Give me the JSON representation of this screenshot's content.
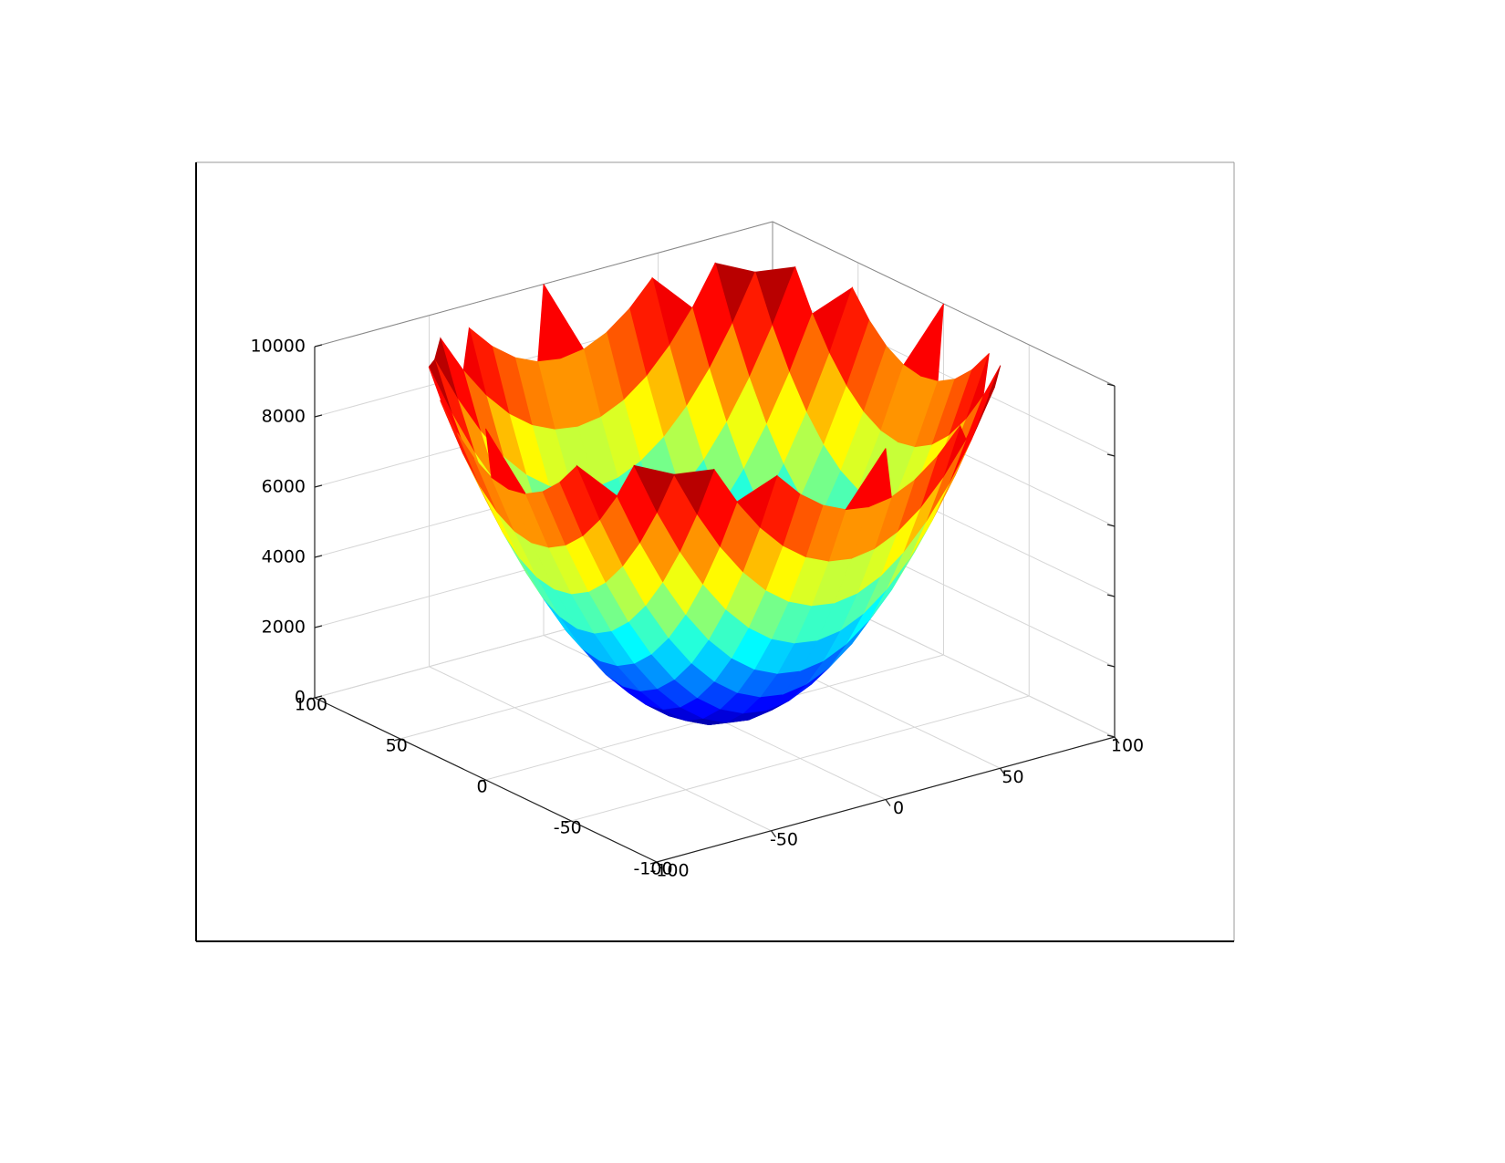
{
  "chart_data": {
    "type": "surface3d",
    "x": [
      -100,
      -90,
      -80,
      -70,
      -60,
      -50,
      -40,
      -30,
      -20,
      -10,
      0,
      10,
      20,
      30,
      40,
      50,
      60,
      70,
      80,
      90,
      100
    ],
    "y": [
      -100,
      -90,
      -80,
      -70,
      -60,
      -50,
      -40,
      -30,
      -20,
      -10,
      0,
      10,
      20,
      30,
      40,
      50,
      60,
      70,
      80,
      90,
      100
    ],
    "z": [
      [
        null,
        null,
        null,
        null,
        null,
        null,
        null,
        null,
        null,
        null,
        10000,
        null,
        null,
        null,
        null,
        null,
        null,
        null,
        null,
        null,
        null
      ],
      [
        null,
        null,
        null,
        null,
        null,
        null,
        9700,
        9000,
        8500,
        8200,
        8100,
        8200,
        8500,
        9000,
        9700,
        null,
        null,
        null,
        null,
        null,
        null
      ],
      [
        null,
        null,
        null,
        null,
        10000,
        8900,
        8000,
        7300,
        6800,
        6500,
        6400,
        6500,
        6800,
        7300,
        8000,
        8900,
        10000,
        null,
        null,
        null,
        null
      ],
      [
        null,
        null,
        null,
        9800,
        8500,
        7400,
        6500,
        5800,
        5300,
        5000,
        4900,
        5000,
        5300,
        5800,
        6500,
        7400,
        8500,
        9800,
        null,
        null,
        null
      ],
      [
        null,
        null,
        10000,
        8500,
        7200,
        6100,
        5200,
        4500,
        4000,
        3700,
        3600,
        3700,
        4000,
        4500,
        5200,
        6100,
        7200,
        8500,
        10000,
        null,
        null
      ],
      [
        null,
        null,
        8900,
        7400,
        6100,
        5000,
        4100,
        3400,
        2900,
        2600,
        2500,
        2600,
        2900,
        3400,
        4100,
        5000,
        6100,
        7400,
        8900,
        null,
        null
      ],
      [
        null,
        9700,
        8000,
        6500,
        5200,
        4100,
        3200,
        2500,
        2000,
        1700,
        1600,
        1700,
        2000,
        2500,
        3200,
        4100,
        5200,
        6500,
        8000,
        9700,
        null
      ],
      [
        null,
        9000,
        7300,
        5800,
        4500,
        3400,
        2500,
        1800,
        1300,
        1000,
        900,
        1000,
        1300,
        1800,
        2500,
        3400,
        4500,
        5800,
        7300,
        9000,
        null
      ],
      [
        null,
        8500,
        6800,
        5300,
        4000,
        2900,
        2000,
        1300,
        800,
        500,
        400,
        500,
        800,
        1300,
        2000,
        2900,
        4000,
        5300,
        6800,
        8500,
        null
      ],
      [
        null,
        8200,
        6500,
        5000,
        3700,
        2600,
        1700,
        1000,
        500,
        200,
        100,
        200,
        500,
        1000,
        1700,
        2600,
        3700,
        5000,
        6500,
        8200,
        null
      ],
      [
        10000,
        8100,
        6400,
        4900,
        3600,
        2500,
        1600,
        900,
        400,
        100,
        0,
        100,
        400,
        900,
        1600,
        2500,
        3600,
        4900,
        6400,
        8100,
        10000
      ],
      [
        null,
        8200,
        6500,
        5000,
        3700,
        2600,
        1700,
        1000,
        500,
        200,
        100,
        200,
        500,
        1000,
        1700,
        2600,
        3700,
        5000,
        6500,
        8200,
        null
      ],
      [
        null,
        8500,
        6800,
        5300,
        4000,
        2900,
        2000,
        1300,
        800,
        500,
        400,
        500,
        800,
        1300,
        2000,
        2900,
        4000,
        5300,
        6800,
        8500,
        null
      ],
      [
        null,
        9000,
        7300,
        5800,
        4500,
        3400,
        2500,
        1800,
        1300,
        1000,
        900,
        1000,
        1300,
        1800,
        2500,
        3400,
        4500,
        5800,
        7300,
        9000,
        null
      ],
      [
        null,
        9700,
        8000,
        6500,
        5200,
        4100,
        3200,
        2500,
        2000,
        1700,
        1600,
        1700,
        2000,
        2500,
        3200,
        4100,
        5200,
        6500,
        8000,
        9700,
        null
      ],
      [
        null,
        null,
        8900,
        7400,
        6100,
        5000,
        4100,
        3400,
        2900,
        2600,
        2500,
        2600,
        2900,
        3400,
        4100,
        5000,
        6100,
        7400,
        8900,
        null,
        null
      ],
      [
        null,
        null,
        10000,
        8500,
        7200,
        6100,
        5200,
        4500,
        4000,
        3700,
        3600,
        3700,
        4000,
        4500,
        5200,
        6100,
        7200,
        8500,
        10000,
        null,
        null
      ],
      [
        null,
        null,
        null,
        9800,
        8500,
        7400,
        6500,
        5800,
        5300,
        5000,
        4900,
        5000,
        5300,
        5800,
        6500,
        7400,
        8500,
        9800,
        null,
        null,
        null
      ],
      [
        null,
        null,
        null,
        null,
        10000,
        8900,
        8000,
        7300,
        6800,
        6500,
        6400,
        6500,
        6800,
        7300,
        8000,
        8900,
        10000,
        null,
        null,
        null,
        null
      ],
      [
        null,
        null,
        null,
        null,
        null,
        null,
        9700,
        9000,
        8500,
        8200,
        8100,
        8200,
        8500,
        9000,
        9700,
        null,
        null,
        null,
        null,
        null,
        null
      ],
      [
        null,
        null,
        null,
        null,
        null,
        null,
        null,
        null,
        null,
        null,
        10000,
        null,
        null,
        null,
        null,
        null,
        null,
        null,
        null,
        null,
        null
      ]
    ],
    "xlim": [
      -100,
      100
    ],
    "ylim": [
      -100,
      100
    ],
    "zlim": [
      0,
      10000
    ],
    "xticks": [
      -100,
      -50,
      0,
      50,
      100
    ],
    "yticks": [
      -100,
      -50,
      0,
      50,
      100
    ],
    "zticks": [
      0,
      2000,
      4000,
      6000,
      8000,
      10000
    ],
    "colormap": "jet",
    "grid": true
  }
}
